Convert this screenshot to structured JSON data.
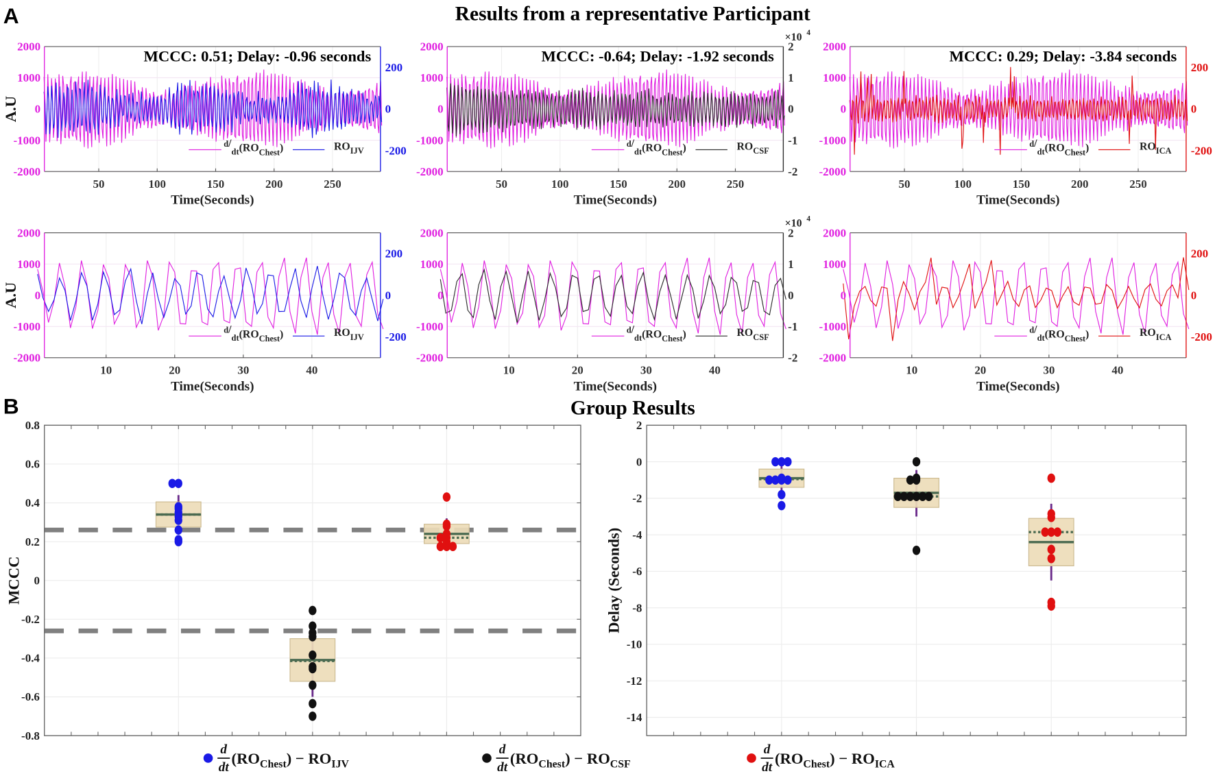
{
  "panel_labels": {
    "a": "A",
    "b": "B"
  },
  "titles": {
    "a": "Results from a representative Participant",
    "b": "Group Results"
  },
  "colors": {
    "chest": "#e020e0",
    "ijv": "#1a1ae6",
    "csf": "#2a2a2a",
    "ica": "#e01010",
    "box_fill": "#eddcb8",
    "box_edge": "#cbb98f",
    "median": "#4a6a50",
    "whisker": "#6a2a8a",
    "threshold": "#808080"
  },
  "chart_data": [
    {
      "type": "line",
      "row": 1,
      "annotation": "MCCC: 0.51; Delay: -0.96 seconds",
      "xlabel": "Time(Seconds)",
      "ylabel": "A.U",
      "xlim": [
        3.5,
        291
      ],
      "xticks": [
        50,
        100,
        150,
        200,
        250
      ],
      "ylim_left": [
        -2000,
        2000
      ],
      "yticks_left": [
        -2000,
        -1000,
        0,
        1000,
        2000
      ],
      "ylim_right": [
        -300,
        300
      ],
      "yticks_right": [
        -200,
        0,
        200
      ],
      "right_color": "#1a1ae6",
      "signal": "ijv",
      "legend_location": "bottom-right",
      "legend": [
        {
          "num": "d",
          "den": "dt",
          "text": "(RO",
          "sub": "Chest",
          "post": ")"
        },
        {
          "text": "RO",
          "sub": "IJV"
        }
      ]
    },
    {
      "type": "line",
      "row": 1,
      "annotation": "MCCC: -0.64; Delay: -1.92 seconds",
      "xlabel": "Time(Seconds)",
      "xlim": [
        3.5,
        291
      ],
      "xticks": [
        50,
        100,
        150,
        200,
        250
      ],
      "ylim_left": [
        -2000,
        2000
      ],
      "yticks_left": [
        -2000,
        -1000,
        0,
        1000,
        2000
      ],
      "ylim_right": [
        -2,
        2
      ],
      "yticks_right": [
        -2,
        -1,
        0,
        1,
        2
      ],
      "right_exponent": {
        "base": "×10",
        "power": "4"
      },
      "right_color": "#2a2a2a",
      "signal": "csf",
      "legend_location": "bottom-right",
      "legend": [
        {
          "num": "d",
          "den": "dt",
          "text": "(RO",
          "sub": "Chest",
          "post": ")"
        },
        {
          "text": "RO",
          "sub": "CSF"
        }
      ]
    },
    {
      "type": "line",
      "row": 1,
      "annotation": "MCCC: 0.29; Delay: -3.84 seconds",
      "xlabel": "Time(Seconds)",
      "xlim": [
        3.5,
        291
      ],
      "xticks": [
        50,
        100,
        150,
        200,
        250
      ],
      "ylim_left": [
        -2000,
        2000
      ],
      "yticks_left": [
        -2000,
        -1000,
        0,
        1000,
        2000
      ],
      "ylim_right": [
        -300,
        300
      ],
      "yticks_right": [
        -200,
        0,
        200
      ],
      "right_color": "#e01010",
      "signal": "ica",
      "legend_location": "bottom-right",
      "legend": [
        {
          "num": "d",
          "den": "dt",
          "text": "(RO",
          "sub": "Chest",
          "post": ")"
        },
        {
          "text": "RO",
          "sub": "ICA"
        }
      ]
    },
    {
      "type": "line",
      "row": 2,
      "xlabel": "Time(Seconds)",
      "ylabel": "A.U",
      "xlim": [
        1,
        50
      ],
      "xticks": [
        10,
        20,
        30,
        40
      ],
      "ylim_left": [
        -2000,
        2000
      ],
      "yticks_left": [
        -2000,
        -1000,
        0,
        1000,
        2000
      ],
      "ylim_right": [
        -300,
        300
      ],
      "yticks_right": [
        -200,
        0,
        200
      ],
      "right_color": "#1a1ae6",
      "signal": "ijv",
      "legend_location": "bottom-right",
      "legend": [
        {
          "num": "d",
          "den": "dt",
          "text": "(RO",
          "sub": "Chest",
          "post": ")"
        },
        {
          "text": "RO",
          "sub": "IJV"
        }
      ]
    },
    {
      "type": "line",
      "row": 2,
      "xlabel": "Time(Seconds)",
      "xlim": [
        1,
        50
      ],
      "xticks": [
        10,
        20,
        30,
        40
      ],
      "ylim_left": [
        -2000,
        2000
      ],
      "yticks_left": [
        -2000,
        -1000,
        0,
        1000,
        2000
      ],
      "ylim_right": [
        -2,
        2
      ],
      "yticks_right": [
        -2,
        -1,
        0,
        1,
        2
      ],
      "right_exponent": {
        "base": "×10",
        "power": "4"
      },
      "right_color": "#2a2a2a",
      "signal": "csf",
      "legend_location": "bottom-right",
      "legend": [
        {
          "num": "d",
          "den": "dt",
          "text": "(RO",
          "sub": "Chest",
          "post": ")"
        },
        {
          "text": "RO",
          "sub": "CSF"
        }
      ]
    },
    {
      "type": "line",
      "row": 2,
      "xlabel": "Time(Seconds)",
      "xlim": [
        1,
        50
      ],
      "xticks": [
        10,
        20,
        30,
        40
      ],
      "ylim_left": [
        -2000,
        2000
      ],
      "yticks_left": [
        -2000,
        -1000,
        0,
        1000,
        2000
      ],
      "ylim_right": [
        -300,
        300
      ],
      "yticks_right": [
        -200,
        0,
        200
      ],
      "right_color": "#e01010",
      "signal": "ica",
      "legend_location": "bottom-right",
      "legend": [
        {
          "num": "d",
          "den": "dt",
          "text": "(RO",
          "sub": "Chest",
          "post": ")"
        },
        {
          "text": "RO",
          "sub": "ICA"
        }
      ]
    },
    {
      "type": "box",
      "ylabel": "MCCC",
      "ylim": [
        -0.8,
        0.8
      ],
      "yticks": [
        -0.8,
        -0.6,
        -0.4,
        -0.2,
        0,
        0.2,
        0.4,
        0.6,
        0.8
      ],
      "xlim": [
        0,
        4
      ],
      "grid": true,
      "thresholds": [
        0.26,
        -0.26
      ],
      "groups": [
        {
          "name": "IJV",
          "color": "#1a1ae6",
          "points": [
            0.5,
            0.5,
            0.38,
            0.37,
            0.35,
            0.33,
            0.31,
            0.26,
            0.21,
            0.2
          ],
          "q1": 0.275,
          "q3": 0.405,
          "median": 0.34,
          "mean": 0.34,
          "whisker": [
            0.275,
            0.44
          ]
        },
        {
          "name": "CSF",
          "color": "#111111",
          "points": [
            -0.155,
            -0.235,
            -0.27,
            -0.29,
            -0.385,
            -0.445,
            -0.455,
            -0.54,
            -0.635,
            -0.7
          ],
          "q1": -0.52,
          "q3": -0.3,
          "median": -0.41,
          "mean": -0.415,
          "whisker": [
            -0.6,
            -0.29
          ]
        },
        {
          "name": "ICA",
          "color": "#e01010",
          "points": [
            0.43,
            0.29,
            0.28,
            0.24,
            0.22,
            0.22,
            0.2,
            0.175,
            0.175,
            0.175
          ],
          "q1": 0.19,
          "q3": 0.29,
          "median": 0.24,
          "mean": 0.22,
          "whisker": [
            0.19,
            0.32
          ]
        }
      ]
    },
    {
      "type": "box",
      "ylabel": "Delay (Seconds)",
      "ylim": [
        -15,
        2
      ],
      "yticks": [
        -14,
        -12,
        -10,
        -8,
        -6,
        -4,
        -2,
        0,
        2
      ],
      "xlim": [
        0,
        4
      ],
      "grid": true,
      "groups": [
        {
          "name": "IJV",
          "color": "#1a1ae6",
          "points": [
            0,
            0,
            0,
            -0.9,
            -1,
            -1,
            -1,
            -1,
            -1.8,
            -2.4
          ],
          "q1": -1.4,
          "q3": -0.4,
          "median": -0.9,
          "mean": -0.95,
          "whisker": [
            -1.8,
            0
          ]
        },
        {
          "name": "CSF",
          "color": "#111111",
          "points": [
            0,
            -0.9,
            -1,
            -1,
            -1.9,
            -1.9,
            -1.9,
            -1.9,
            -1.9,
            -1.9,
            -4.85
          ],
          "q1": -2.5,
          "q3": -0.9,
          "median": -1.7,
          "mean": -1.9,
          "whisker": [
            -3.0,
            -0.45
          ]
        },
        {
          "name": "ICA",
          "color": "#e01010",
          "points": [
            -0.9,
            -2.85,
            -3.05,
            -3.85,
            -3.85,
            -3.85,
            -4.8,
            -5.3,
            -7.7,
            -7.9
          ],
          "q1": -5.7,
          "q3": -3.1,
          "median": -4.4,
          "mean": -3.85,
          "whisker": [
            -6.5,
            -2.3
          ]
        }
      ]
    }
  ],
  "group_legend": [
    {
      "num": "d",
      "den": "dt",
      "text": "(RO",
      "sub": "Chest",
      "post": ") − RO",
      "sub2": "IJV",
      "color": "#1a1ae6"
    },
    {
      "num": "d",
      "den": "dt",
      "text": "(RO",
      "sub": "Chest",
      "post": ") − RO",
      "sub2": "CSF",
      "color": "#111111"
    },
    {
      "num": "d",
      "den": "dt",
      "text": "(RO",
      "sub": "Chest",
      "post": ") − RO",
      "sub2": "ICA",
      "color": "#e01010"
    }
  ]
}
